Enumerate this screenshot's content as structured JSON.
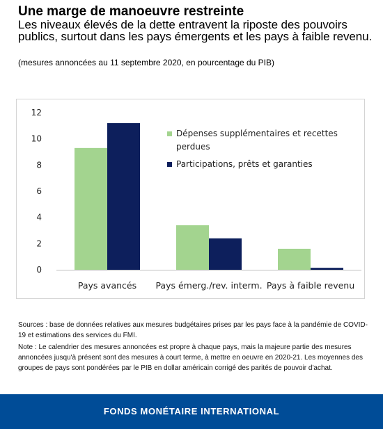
{
  "header": {
    "title": "Une marge de manoeuvre restreinte",
    "subtitle": "Les niveaux élevés de la dette entravent la riposte des pouvoirs publics, surtout dans les pays émergents et les pays à faible revenu.",
    "note": "(mesures annoncées au 11 septembre 2020, en pourcentage du PIB)"
  },
  "chart_data": {
    "type": "bar",
    "categories": [
      "Pays avancés",
      "Pays émerg./rev. interm.",
      "Pays à faible revenu"
    ],
    "series": [
      {
        "name": "Dépenses supplémentaires et recettes perdues",
        "color": "#a3d48f",
        "values": [
          9.3,
          3.4,
          1.6
        ]
      },
      {
        "name": "Participations, prêts et garanties",
        "color": "#0d1f5c",
        "values": [
          11.2,
          2.4,
          0.15
        ]
      }
    ],
    "ylim": [
      0,
      12
    ],
    "yticks": [
      0,
      2,
      4,
      6,
      8,
      10,
      12
    ],
    "grid": false,
    "legend_position": "top-right"
  },
  "legend": {
    "items": [
      {
        "label": "Dépenses supplémentaires et recettes perdues",
        "color": "#a3d48f"
      },
      {
        "label": "Participations, prêts et garanties",
        "color": "#0d1f5c"
      }
    ]
  },
  "sources": {
    "sources_text": "Sources : base de données relatives aux mesures budgétaires prises par les pays face à la pandémie de COVID-19 et estimations des services du FMI.",
    "note_text": "Note : Le calendrier des mesures annoncées est propre à chaque pays, mais la majeure partie des mesures annoncées jusqu'à présent sont des mesures à court terme, à mettre en oeuvre en 2020-21. Les moyennes des groupes de pays sont pondérées par le PIB en dollar américain corrigé des parités de pouvoir d'achat."
  },
  "footer": {
    "label": "FONDS MONÉTAIRE INTERNATIONAL",
    "color": "#004c97"
  }
}
